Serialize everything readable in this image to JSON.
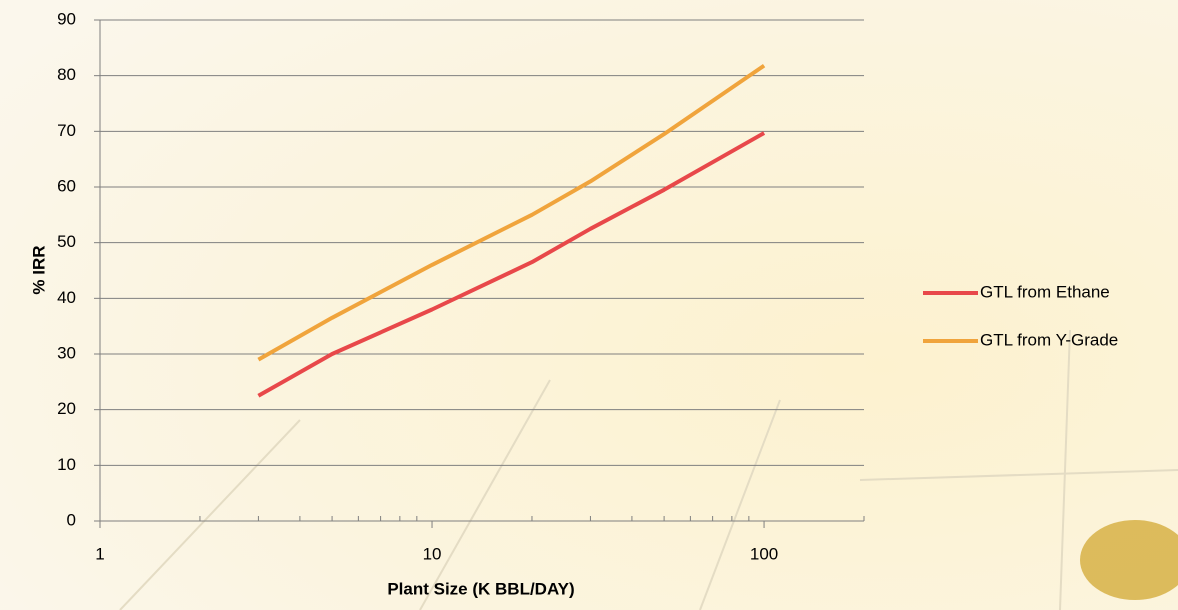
{
  "chart_data": {
    "type": "line",
    "x_label": "Plant Size (K BBL/DAY)",
    "y_label": "% IRR",
    "x_log": true,
    "xlim": [
      1,
      200
    ],
    "xticks": [
      1,
      10,
      100
    ],
    "xminorticks": [
      2,
      3,
      4,
      5,
      6,
      7,
      8,
      9,
      20,
      30,
      40,
      50,
      60,
      70,
      80,
      90,
      200
    ],
    "ylim": [
      0,
      90
    ],
    "yticks": [
      0,
      10,
      20,
      30,
      40,
      50,
      60,
      70,
      80,
      90
    ],
    "grid": true,
    "legend": "right",
    "x": [
      3,
      5,
      10,
      20,
      30,
      50,
      100
    ],
    "series": [
      {
        "name": "GTL from Ethane",
        "color": "#e8484a",
        "values": [
          22.5,
          30,
          38,
          46.5,
          52.5,
          59.5,
          69.7
        ]
      },
      {
        "name": "GTL from Y-Grade",
        "color": "#f0a43c",
        "values": [
          29,
          36.5,
          46,
          55,
          61,
          69.5,
          81.8
        ]
      }
    ]
  }
}
